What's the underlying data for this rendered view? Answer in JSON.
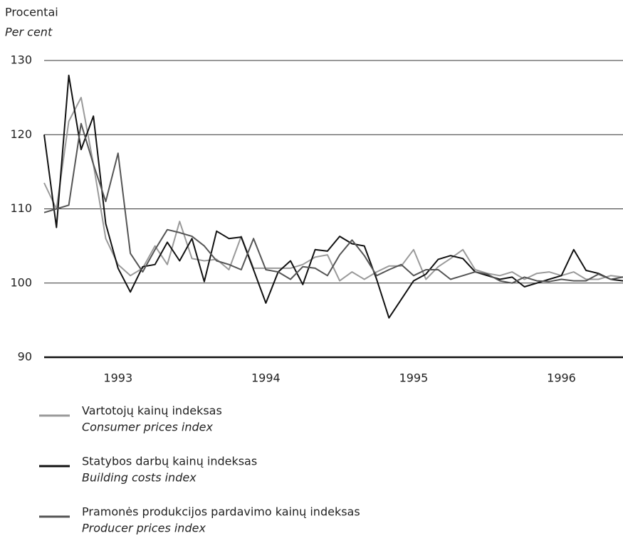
{
  "chart_data": {
    "type": "line",
    "y_axis_label": "Procentai",
    "y_axis_label_en": "Per cent",
    "categories": [
      null,
      null,
      null,
      null,
      null,
      null,
      "1993",
      null,
      null,
      null,
      null,
      null,
      null,
      null,
      null,
      null,
      null,
      null,
      "1994",
      null,
      null,
      null,
      null,
      null,
      null,
      null,
      null,
      null,
      null,
      null,
      "1995",
      null,
      null,
      null,
      null,
      null,
      null,
      null,
      null,
      null,
      null,
      null,
      "1996",
      null,
      null,
      null,
      null,
      null
    ],
    "series": [
      {
        "name": "Vartotojų kainų indeksas",
        "name_en": "Consumer prices index",
        "color": "#9a9a9a",
        "values": [
          113.5,
          110,
          121.8,
          125,
          116,
          106,
          102.5,
          101,
          102,
          105,
          102.5,
          108.3,
          103.3,
          103,
          103.2,
          101.8,
          106.3,
          102,
          102,
          102,
          102,
          102.5,
          103.5,
          103.8,
          100.3,
          101.5,
          100.5,
          101.5,
          102.3,
          102.3,
          104.5,
          100.5,
          102.2,
          103.3,
          104.5,
          101.8,
          101.3,
          101,
          101.5,
          100.5,
          101.3,
          101.5,
          101,
          101.5,
          100.5,
          100.5,
          101,
          100.8
        ]
      },
      {
        "name": "Statybos darbų kainų indeksas",
        "name_en": "Building costs index",
        "color": "#111111",
        "values": [
          120,
          107.5,
          128,
          118,
          122.5,
          108,
          102,
          98.8,
          102.2,
          102.5,
          105.5,
          103,
          106,
          100.2,
          107,
          106,
          106.2,
          101.8,
          97.3,
          101.5,
          103,
          99.8,
          104.5,
          104.3,
          106.3,
          105.3,
          105,
          100.5,
          95.3,
          97.8,
          100.3,
          101.2,
          103.2,
          103.7,
          103.3,
          101.5,
          101,
          100.5,
          100.8,
          99.5,
          100,
          100.5,
          101,
          104.5,
          101.7,
          101.3,
          100.5,
          100.3
        ]
      },
      {
        "name": "Pramonės produkcijos pardavimo kainų indeksas",
        "name_en": "Producer prices index",
        "color": "#555555",
        "values": [
          109.5,
          110,
          110.5,
          121.5,
          116,
          111,
          117.5,
          104,
          101.5,
          104.5,
          107.2,
          106.8,
          106.3,
          105,
          103,
          102.5,
          101.8,
          106,
          101.8,
          101.5,
          100.5,
          102.2,
          102,
          101,
          103.8,
          105.8,
          103.7,
          101,
          101.8,
          102.5,
          101,
          101.8,
          101.8,
          100.5,
          101,
          101.5,
          101.2,
          100.3,
          100,
          100.8,
          100.3,
          100.2,
          100.5,
          100.3,
          100.3,
          101.2,
          100.5,
          100.8
        ]
      }
    ],
    "ylim": [
      90,
      130
    ],
    "yticks": [
      90,
      100,
      110,
      120,
      130
    ],
    "grid": true
  }
}
